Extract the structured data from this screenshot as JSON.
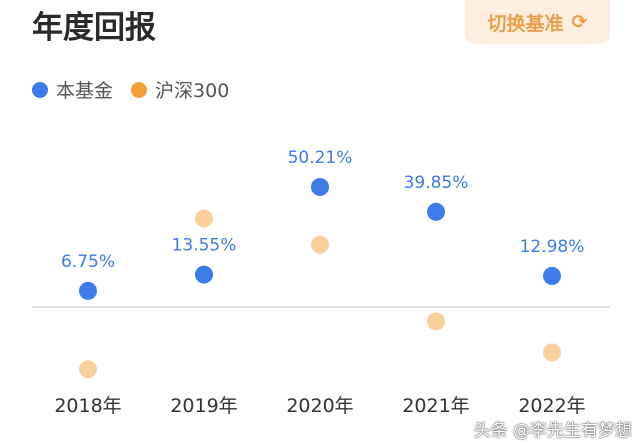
{
  "header": {
    "title": "年度回报",
    "switch_label": "切换基准",
    "switch_icon": "refresh-icon"
  },
  "watermark": "头条 @李先生有梦想",
  "chart_data": {
    "type": "scatter",
    "title": "年度回报",
    "categories": [
      "2018年",
      "2019年",
      "2020年",
      "2021年",
      "2022年"
    ],
    "series": [
      {
        "name": "本基金",
        "color": "#3d7be8",
        "values": [
          6.75,
          13.55,
          50.21,
          39.85,
          12.98
        ],
        "labels": [
          "6.75%",
          "13.55%",
          "50.21%",
          "39.85%",
          "12.98%"
        ]
      },
      {
        "name": "沪深300",
        "color": "#f5a03a",
        "values": [
          -26,
          37,
          26,
          -6,
          -19
        ]
      }
    ],
    "ylim": [
      -30,
      55
    ],
    "zero_line": true,
    "legend_position": "top-left"
  }
}
